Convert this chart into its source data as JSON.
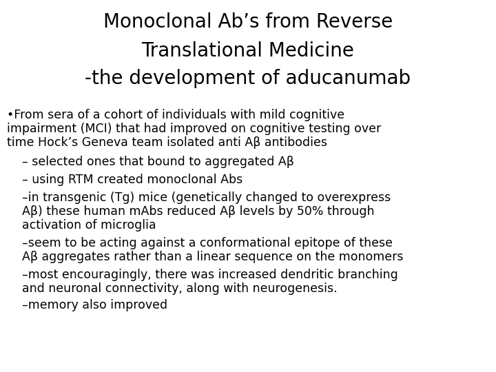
{
  "title_line1": "Monoclonal Ab’s from Reverse",
  "title_line2": "Translational Medicine",
  "title_line3": "-the development of aducanumab",
  "title_fontsize": 20,
  "body_fontsize": 12.5,
  "background_color": "#ffffff",
  "text_color": "#000000",
  "bullet1_line1": "•From sera of a cohort of individuals with mild cognitive",
  "bullet1_line2": "impairment (MCI) that had improved on cognitive testing over",
  "bullet1_line3": "time Hock’s Geneva team isolated anti Aβ antibodies",
  "indent1": "    – selected ones that bound to aggregated Aβ",
  "indent2": "    – using RTM created monoclonal Abs",
  "indent3_line1": "    –in transgenic (Tg) mice (genetically changed to overexpress",
  "indent3_line2": "    Aβ) these human mAbs reduced Aβ levels by 50% through",
  "indent3_line3": "    activation of microglia",
  "indent4_line1": "    –seem to be acting against a conformational epitope of these",
  "indent4_line2": "    Aβ aggregates rather than a linear sequence on the monomers",
  "indent5_line1": "    –most encouragingly, there was increased dendritic branching",
  "indent5_line2": "    and neuronal connectivity, along with neurogenesis.",
  "indent6": "    –memory also improved"
}
